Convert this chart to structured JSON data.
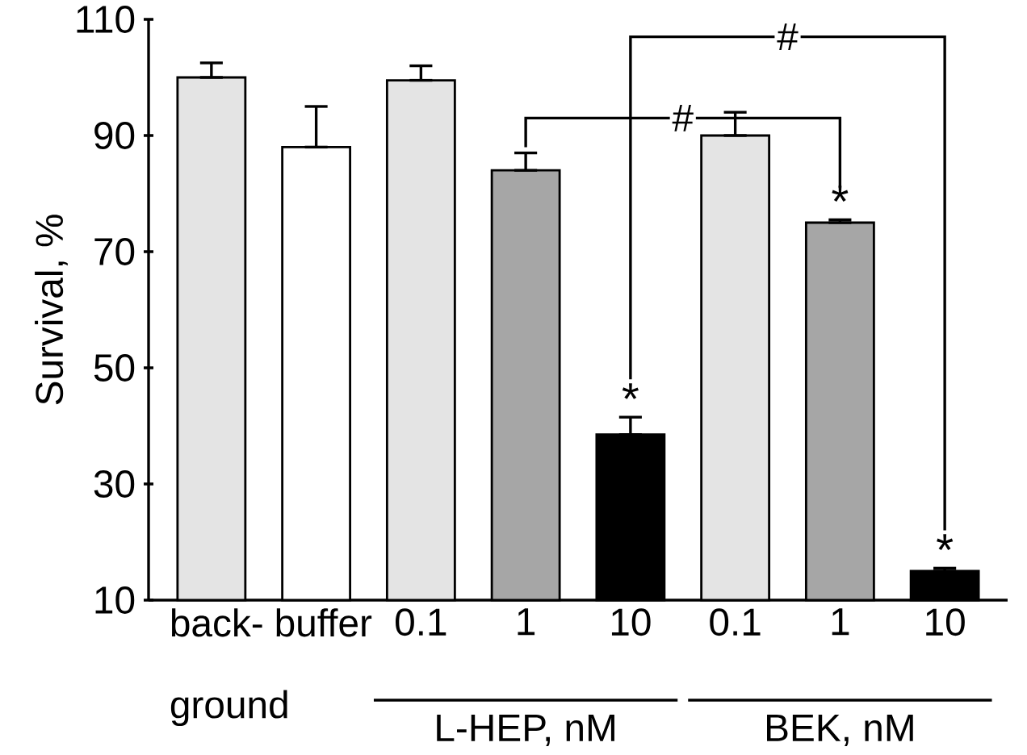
{
  "chart_data": {
    "type": "bar",
    "ylabel": "Survival, %",
    "categories": [
      "back- ground",
      "buffer",
      "0.1",
      "1",
      "10",
      "0.1",
      "1",
      "10"
    ],
    "values": [
      100,
      88,
      99.5,
      84,
      38.5,
      90,
      75,
      15
    ],
    "errors": [
      [
        100,
        102.5
      ],
      [
        88,
        95
      ],
      [
        99.5,
        102
      ],
      [
        84,
        87
      ],
      [
        38.5,
        41.5
      ],
      [
        90,
        94
      ],
      [
        75,
        75.5
      ],
      [
        15,
        15.5
      ]
    ],
    "colors": [
      "#e4e4e4",
      "#ffffff",
      "#e4e4e4",
      "#a6a6a6",
      "#000000",
      "#e4e4e4",
      "#a6a6a6",
      "#000000"
    ],
    "ylim": [
      10,
      110
    ],
    "yticks": [
      10,
      30,
      50,
      70,
      90,
      110
    ],
    "grid": false,
    "annotations": [
      "#",
      "#",
      {
        "text": "*",
        "y": 41.5
      },
      {
        "text": "*",
        "y": 75.5
      },
      {
        "text": "*",
        "y": 15.5
      },
      "L-HEP, nM",
      "BEK, nM"
    ]
  }
}
